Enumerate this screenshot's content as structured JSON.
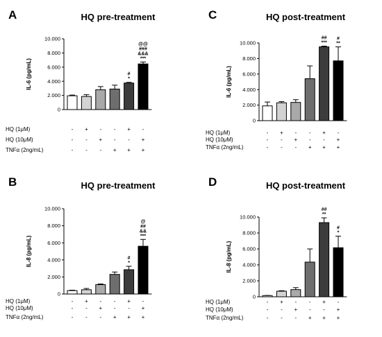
{
  "figure": {
    "row_labels": [
      "HQ (1μM)",
      "HQ (10μM)",
      "TNFα (2ng/mL)"
    ]
  },
  "chart_data": [
    {
      "panel": "A",
      "type": "bar",
      "title": "HQ pre-treatment",
      "ylabel": "IL-6 (pg/mL)",
      "ylim": [
        0,
        10000
      ],
      "yticks": [
        "0",
        "2.000",
        "4.000",
        "6.000",
        "8.000",
        "10.000"
      ],
      "values": [
        1950,
        1850,
        2800,
        2900,
        3750,
        6450
      ],
      "errors": [
        100,
        250,
        450,
        550,
        100,
        280
      ],
      "fills": [
        "#ffffff",
        "#d3d3d3",
        "#a9a9a9",
        "#6e6e6e",
        "#3c3c3c",
        "#000000"
      ],
      "annotations": [
        [],
        [],
        [],
        [],
        [
          "#",
          "*"
        ],
        [
          "@@",
          "###",
          "&&&",
          "***"
        ]
      ],
      "conditions": [
        [
          "-",
          "+",
          "-",
          "-",
          "+",
          "-"
        ],
        [
          "-",
          "-",
          "+",
          "-",
          "-",
          "+"
        ],
        [
          "-",
          "-",
          "-",
          "+",
          "+",
          "+"
        ]
      ]
    },
    {
      "panel": "C",
      "type": "bar",
      "title": "HQ post-treatment",
      "ylabel": "IL-6 (pg/mL)",
      "ylim": [
        0,
        10000
      ],
      "yticks": [
        "0",
        "2.000",
        "4.000",
        "6.000",
        "8.000",
        "10.000"
      ],
      "values": [
        1900,
        2300,
        2350,
        5400,
        9500,
        7700
      ],
      "errors": [
        500,
        150,
        350,
        1650,
        100,
        1800
      ],
      "fills": [
        "#ffffff",
        "#d3d3d3",
        "#a9a9a9",
        "#6e6e6e",
        "#3c3c3c",
        "#000000"
      ],
      "annotations": [
        [],
        [],
        [],
        [],
        [
          "##",
          "***"
        ],
        [
          "#",
          "**"
        ]
      ],
      "conditions": [
        [
          "-",
          "+",
          "-",
          "-",
          "+",
          "-"
        ],
        [
          "-",
          "-",
          "+",
          "-",
          "-",
          "+"
        ],
        [
          "-",
          "-",
          "-",
          "+",
          "+",
          "+"
        ]
      ]
    },
    {
      "panel": "B",
      "type": "bar",
      "title": "HQ pre-treatment",
      "ylabel": "IL-8 (pg/mL)",
      "ylim": [
        0,
        10000
      ],
      "yticks": [
        "0",
        "2.000",
        "4.000",
        "6.000",
        "8.000",
        "10.000"
      ],
      "values": [
        400,
        500,
        1100,
        2300,
        2850,
        5600
      ],
      "errors": [
        50,
        150,
        80,
        280,
        400,
        800
      ],
      "fills": [
        "#ffffff",
        "#d3d3d3",
        "#a9a9a9",
        "#6e6e6e",
        "#3c3c3c",
        "#000000"
      ],
      "annotations": [
        [],
        [],
        [],
        [],
        [
          "#",
          "*"
        ],
        [
          "@",
          "##",
          "&&",
          "***"
        ]
      ],
      "conditions": [
        [
          "-",
          "+",
          "-",
          "-",
          "+",
          "-"
        ],
        [
          "-",
          "-",
          "+",
          "-",
          "-",
          "+"
        ],
        [
          "-",
          "-",
          "-",
          "+",
          "+",
          "+"
        ]
      ]
    },
    {
      "panel": "D",
      "type": "bar",
      "title": "HQ post-treatment",
      "ylabel": "IL-8 (pg/mL)",
      "ylim": [
        0,
        10000
      ],
      "yticks": [
        "0",
        "2.000",
        "4.000",
        "6.000",
        "8.000",
        "10.000"
      ],
      "values": [
        150,
        700,
        900,
        4350,
        9300,
        6150
      ],
      "errors": [
        20,
        60,
        250,
        1650,
        600,
        1450
      ],
      "fills": [
        "#ffffff",
        "#d3d3d3",
        "#a9a9a9",
        "#6e6e6e",
        "#3c3c3c",
        "#000000"
      ],
      "annotations": [
        [],
        [],
        [],
        [],
        [
          "##",
          "**"
        ],
        [
          "#",
          "*"
        ]
      ],
      "conditions": [
        [
          "-",
          "+",
          "-",
          "-",
          "+",
          "-"
        ],
        [
          "-",
          "-",
          "+",
          "-",
          "-",
          "+"
        ],
        [
          "-",
          "-",
          "-",
          "+",
          "+",
          "+"
        ]
      ]
    }
  ]
}
